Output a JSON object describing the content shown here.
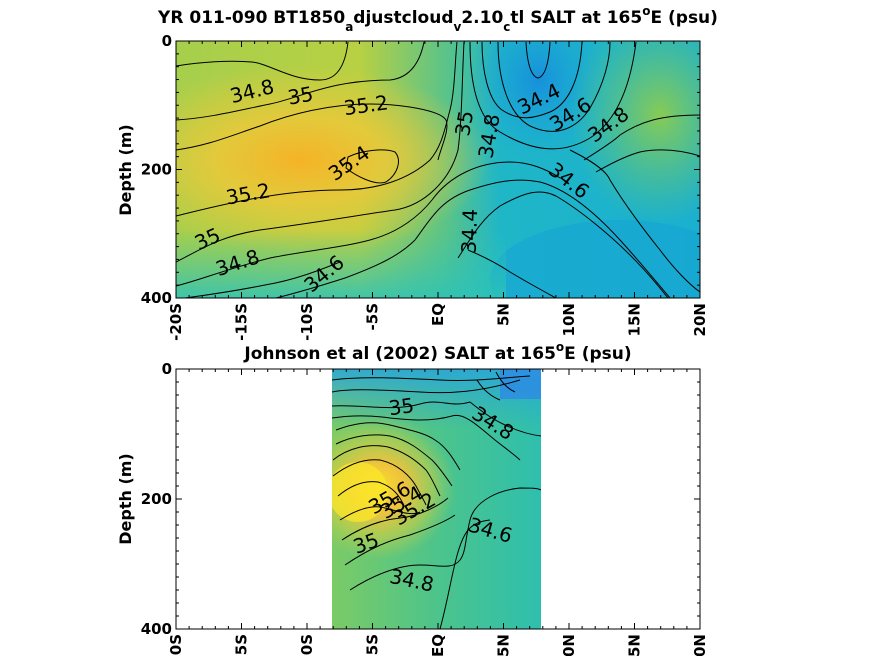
{
  "chart_data": [
    {
      "type": "heatmap",
      "title": {
        "prefix": "YR 011-090 BT1850",
        "sub1": "a",
        "mid1": "djustcloud",
        "sub2": "v",
        "mid2": "2.10",
        "sub3": "c",
        "mid3": "tl SALT at 165",
        "sup": "o",
        "suffix": "E (psu)"
      },
      "ylabel": "Depth (m)",
      "xlim": [
        -20,
        20
      ],
      "ylim": [
        400,
        0
      ],
      "x_ticks": [
        -20,
        -15,
        -10,
        -5,
        0,
        5,
        10,
        15,
        20
      ],
      "x_tick_labels": [
        "-20S",
        "-15S",
        "-10S",
        "-5S",
        "EQ",
        "5N",
        "10N",
        "15N",
        "20N"
      ],
      "y_ticks": [
        0,
        200,
        400
      ],
      "y_tick_labels": [
        "0",
        "200",
        "400"
      ],
      "colors": {
        "low": "#1b9ad6",
        "mid": "#2cc3b8",
        "high": "#f7d52c",
        "max": "#f4a521"
      },
      "contour_labels": [
        {
          "text": "34.8",
          "x": -14.2,
          "y": 78,
          "angle": -14
        },
        {
          "text": "35",
          "x": -10.5,
          "y": 85,
          "angle": -10
        },
        {
          "text": "35.2",
          "x": -5.5,
          "y": 100,
          "angle": -8
        },
        {
          "text": "35.4",
          "x": -6.8,
          "y": 190,
          "angle": -35
        },
        {
          "text": "35.2",
          "x": -14.5,
          "y": 238,
          "angle": -10
        },
        {
          "text": "35",
          "x": -17.6,
          "y": 308,
          "angle": -24
        },
        {
          "text": "34.8",
          "x": -15.3,
          "y": 345,
          "angle": -18
        },
        {
          "text": "34.6",
          "x": -8.7,
          "y": 362,
          "angle": -40
        },
        {
          "text": "35",
          "x": 2.0,
          "y": 128,
          "angle": -80
        },
        {
          "text": "34.8",
          "x": 3.9,
          "y": 148,
          "angle": -80
        },
        {
          "text": "34.4",
          "x": 2.4,
          "y": 296,
          "angle": -88
        },
        {
          "text": "34.4",
          "x": 7.7,
          "y": 90,
          "angle": -26
        },
        {
          "text": "34.6",
          "x": 10.1,
          "y": 114,
          "angle": -32
        },
        {
          "text": "34.8",
          "x": 13.0,
          "y": 130,
          "angle": -36
        },
        {
          "text": "34.6",
          "x": 10.0,
          "y": 217,
          "angle": 38
        }
      ]
    },
    {
      "type": "heatmap",
      "title": {
        "prefix": "Johnson et al (2002) SALT at 165",
        "sup": "o",
        "suffix": "E (psu)"
      },
      "ylabel": "Depth (m)",
      "xlim": [
        -20,
        20
      ],
      "ylim": [
        400,
        0
      ],
      "data_xlim": [
        -8,
        8
      ],
      "x_ticks": [
        -20,
        -15,
        -10,
        -5,
        0,
        5,
        10,
        15,
        20
      ],
      "x_tick_labels": [
        "-20S",
        "-15S",
        "-10S",
        "-5S",
        "EQ",
        "5N",
        "10N",
        "15N",
        "20N"
      ],
      "y_ticks": [
        0,
        200,
        400
      ],
      "y_tick_labels": [
        "0",
        "200",
        "400"
      ],
      "contour_labels": [
        {
          "text": "35",
          "x": -2.8,
          "y": 58,
          "angle": -8
        },
        {
          "text": "34.8",
          "x": 4.2,
          "y": 83,
          "angle": 32
        },
        {
          "text": "35.6",
          "x": -3.7,
          "y": 198,
          "angle": -30
        },
        {
          "text": "35.4",
          "x": -2.8,
          "y": 205,
          "angle": -30
        },
        {
          "text": "35.2",
          "x": -1.8,
          "y": 215,
          "angle": -30
        },
        {
          "text": "35",
          "x": -5.5,
          "y": 268,
          "angle": -20
        },
        {
          "text": "34.6",
          "x": 4.0,
          "y": 248,
          "angle": 16
        },
        {
          "text": "34.8",
          "x": -2.0,
          "y": 325,
          "angle": 12
        }
      ]
    }
  ]
}
